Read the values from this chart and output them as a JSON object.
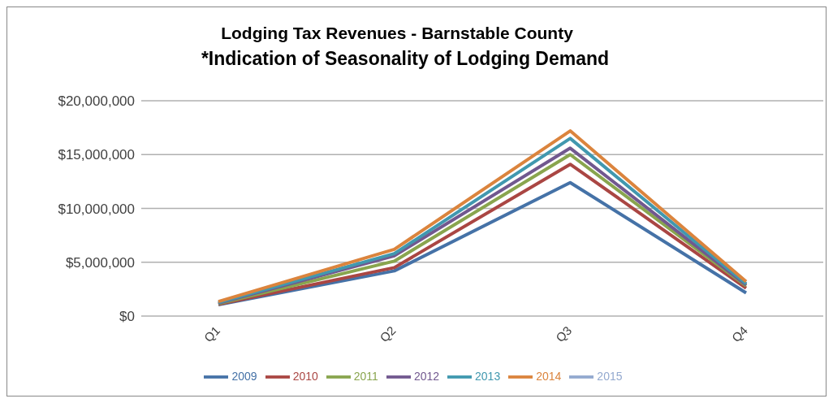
{
  "chart_data": {
    "type": "line",
    "title": "Lodging Tax Revenues - Barnstable County",
    "subtitle": "*Indication of Seasonality of Lodging Demand",
    "categories": [
      "Q1",
      "Q2",
      "Q3",
      "Q4"
    ],
    "series": [
      {
        "name": "2009",
        "color": "#4572a7",
        "values": [
          1050000,
          4200000,
          12400000,
          2150000
        ]
      },
      {
        "name": "2010",
        "color": "#aa4643",
        "values": [
          1100000,
          4500000,
          14100000,
          2600000
        ]
      },
      {
        "name": "2011",
        "color": "#89a54e",
        "values": [
          1150000,
          5100000,
          15000000,
          2800000
        ]
      },
      {
        "name": "2012",
        "color": "#71588f",
        "values": [
          1200000,
          5600000,
          15600000,
          2900000
        ]
      },
      {
        "name": "2013",
        "color": "#4198af",
        "values": [
          1250000,
          5800000,
          16500000,
          3000000
        ]
      },
      {
        "name": "2014",
        "color": "#db843d",
        "values": [
          1350000,
          6200000,
          17200000,
          3200000
        ]
      },
      {
        "name": "2015",
        "color": "#93a9cf",
        "values": [
          null,
          null,
          null,
          null
        ]
      }
    ],
    "ylim": [
      0,
      20000000
    ],
    "yticks": [
      {
        "value": 0,
        "label": "$0"
      },
      {
        "value": 5000000,
        "label": "$5,000,000"
      },
      {
        "value": 10000000,
        "label": "$10,000,000"
      },
      {
        "value": 15000000,
        "label": "$15,000,000"
      },
      {
        "value": 20000000,
        "label": "$20,000,000"
      }
    ],
    "grid": "y",
    "legend": "bottom",
    "marker": "none",
    "line_style": "solid"
  }
}
